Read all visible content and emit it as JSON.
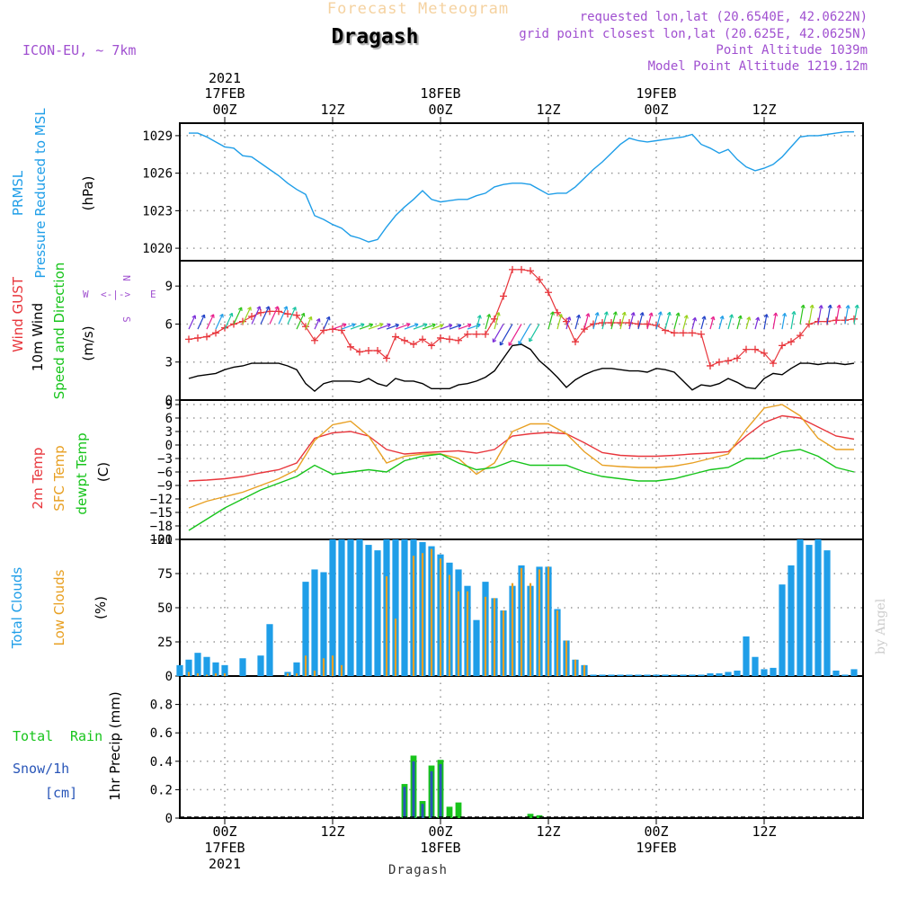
{
  "header": {
    "forecast_title": "Forecast Meteogram",
    "location": "Dragash",
    "model": "ICON-EU, ~ 7km",
    "requested": "requested lon,lat (20.6540E, 42.0622N)",
    "grid_point": "grid point closest lon,lat (20.625E, 42.0625N)",
    "point_altitude": "Point Altitude 1039m",
    "model_altitude": "Model Point Altitude 1219.12m",
    "credit": "by Angel",
    "bottom_location": "Dragash"
  },
  "time_axis": {
    "ticks": [
      {
        "hour": 0,
        "label": "00Z",
        "date": "17FEB",
        "year": "2021"
      },
      {
        "hour": 12,
        "label": "12Z",
        "date": "",
        "year": ""
      },
      {
        "hour": 24,
        "label": "00Z",
        "date": "18FEB",
        "year": ""
      },
      {
        "hour": 36,
        "label": "12Z",
        "date": "",
        "year": ""
      },
      {
        "hour": 48,
        "label": "00Z",
        "date": "19FEB",
        "year": ""
      },
      {
        "hour": 60,
        "label": "12Z",
        "date": "",
        "year": ""
      }
    ],
    "range_hours": [
      -5,
      71
    ]
  },
  "chart_data": [
    {
      "type": "line",
      "panel": "pressure",
      "labels": [
        "PRMSL",
        "Pressure Reduced to MSL",
        "(hPa)"
      ],
      "ylim": [
        1019,
        1030
      ],
      "yticks": [
        1020,
        1023,
        1026,
        1029
      ],
      "grid": true,
      "colors": {
        "line": "#1f9ee8"
      },
      "series": [
        {
          "x": [
            -4,
            -3,
            -2,
            -1,
            0,
            1,
            2,
            3,
            4,
            5,
            6,
            7,
            8,
            9,
            10,
            11,
            12,
            13,
            14,
            15,
            16,
            17,
            18,
            19,
            20,
            21,
            22,
            23,
            24,
            25,
            26,
            27,
            28,
            29,
            30,
            31,
            32,
            33,
            34,
            35,
            36,
            37,
            38,
            39,
            40,
            41,
            42,
            43,
            44,
            45,
            46,
            47,
            48,
            49,
            50,
            51,
            52,
            53,
            54,
            55,
            56,
            57,
            58,
            59,
            60,
            61,
            62,
            63,
            64,
            65,
            66,
            67,
            68,
            69,
            70
          ],
          "y": [
            1029.2,
            1029.2,
            1028.9,
            1028.5,
            1028.1,
            1028.0,
            1027.4,
            1027.3,
            1026.8,
            1026.3,
            1025.8,
            1025.2,
            1024.7,
            1024.3,
            1022.6,
            1022.3,
            1021.9,
            1021.6,
            1021.0,
            1020.8,
            1020.5,
            1020.7,
            1021.7,
            1022.6,
            1023.3,
            1023.9,
            1024.6,
            1023.9,
            1023.7,
            1023.8,
            1023.9,
            1023.9,
            1024.2,
            1024.4,
            1024.9,
            1025.1,
            1025.2,
            1025.2,
            1025.1,
            1024.7,
            1024.3,
            1024.4,
            1024.4,
            1024.9,
            1025.6,
            1026.3,
            1026.9,
            1027.6,
            1028.3,
            1028.8,
            1028.6,
            1028.5,
            1028.6,
            1028.7,
            1028.8,
            1028.9,
            1029.1,
            1028.3,
            1028.0,
            1027.6,
            1027.9,
            1027.1,
            1026.5,
            1026.2,
            1026.4,
            1026.7,
            1027.3,
            1028.1,
            1028.9,
            1029.0,
            1029.0,
            1029.1,
            1029.2,
            1029.3,
            1029.3
          ]
        }
      ]
    },
    {
      "type": "line",
      "panel": "wind",
      "labels": [
        "Wind GUST",
        "10m Wind",
        "Speed and Direction",
        "(m/s)"
      ],
      "compass": {
        "west": "W",
        "east": "E",
        "north": "N",
        "south": "S"
      },
      "ylim": [
        0,
        11
      ],
      "yticks": [
        0,
        3,
        6,
        9
      ],
      "grid": true,
      "colors": {
        "gust": "#e8363c",
        "wind": "#000000"
      },
      "series": [
        {
          "name": "Wind GUST",
          "x": [
            -4,
            -3,
            -2,
            -1,
            0,
            1,
            2,
            3,
            4,
            5,
            6,
            7,
            8,
            9,
            10,
            11,
            12,
            13,
            14,
            15,
            16,
            17,
            18,
            19,
            20,
            21,
            22,
            23,
            24,
            25,
            26,
            27,
            28,
            29,
            30,
            31,
            32,
            33,
            34,
            35,
            36,
            37,
            38,
            39,
            40,
            41,
            42,
            43,
            44,
            45,
            46,
            47,
            48,
            49,
            50,
            51,
            52,
            53,
            54,
            55,
            56,
            57,
            58,
            59,
            60,
            61,
            62,
            63,
            64,
            65,
            66,
            67,
            68,
            69,
            70
          ],
          "y": [
            4.8,
            4.9,
            5.0,
            5.3,
            5.7,
            6.0,
            6.2,
            6.6,
            6.9,
            7.0,
            7.0,
            6.8,
            6.7,
            5.8,
            4.7,
            5.5,
            5.6,
            5.5,
            4.2,
            3.8,
            3.9,
            3.9,
            3.3,
            5.0,
            4.7,
            4.4,
            4.8,
            4.3,
            4.9,
            4.8,
            4.7,
            5.2,
            5.2,
            5.2,
            6.4,
            8.2,
            10.3,
            10.3,
            10.2,
            9.5,
            8.5,
            6.9,
            6.2,
            4.6,
            5.6,
            6.0,
            6.1,
            6.1,
            6.1,
            6.1,
            6.0,
            6.0,
            5.9,
            5.5,
            5.3,
            5.3,
            5.3,
            5.2,
            2.7,
            3.0,
            3.1,
            3.3,
            4.0,
            4.0,
            3.7,
            2.9,
            4.3,
            4.6,
            5.1,
            6.0,
            6.2,
            6.2,
            6.3,
            6.3,
            6.4
          ]
        },
        {
          "name": "10m Wind",
          "x": [
            -4,
            -3,
            -2,
            -1,
            0,
            1,
            2,
            3,
            4,
            5,
            6,
            7,
            8,
            9,
            10,
            11,
            12,
            13,
            14,
            15,
            16,
            17,
            18,
            19,
            20,
            21,
            22,
            23,
            24,
            25,
            26,
            27,
            28,
            29,
            30,
            31,
            32,
            33,
            34,
            35,
            36,
            37,
            38,
            39,
            40,
            41,
            42,
            43,
            44,
            45,
            46,
            47,
            48,
            49,
            50,
            51,
            52,
            53,
            54,
            55,
            56,
            57,
            58,
            59,
            60,
            61,
            62,
            63,
            64,
            65,
            66,
            67,
            68,
            69,
            70
          ],
          "y": [
            1.7,
            1.9,
            2.0,
            2.1,
            2.4,
            2.6,
            2.7,
            2.9,
            2.9,
            2.9,
            2.9,
            2.7,
            2.4,
            1.3,
            0.7,
            1.3,
            1.5,
            1.5,
            1.5,
            1.4,
            1.7,
            1.3,
            1.1,
            1.7,
            1.5,
            1.5,
            1.3,
            0.9,
            0.9,
            0.9,
            1.2,
            1.3,
            1.5,
            1.8,
            2.3,
            3.3,
            4.3,
            4.4,
            4.0,
            3.1,
            2.5,
            1.8,
            1.0,
            1.6,
            2.0,
            2.3,
            2.5,
            2.5,
            2.4,
            2.3,
            2.3,
            2.2,
            2.5,
            2.4,
            2.2,
            1.5,
            0.8,
            1.2,
            1.1,
            1.3,
            1.7,
            1.4,
            1.0,
            0.9,
            1.7,
            2.1,
            2.0,
            2.5,
            2.9,
            2.9,
            2.8,
            2.9,
            2.9,
            2.8,
            2.9
          ]
        }
      ]
    },
    {
      "type": "line",
      "panel": "temperature",
      "labels": [
        "2m Temp",
        "SFC Temp",
        "dewpt Temp",
        "(C)"
      ],
      "ylim": [
        -21,
        10
      ],
      "yticks": [
        9,
        6,
        3,
        0,
        -3,
        -6,
        -9,
        -12,
        -15,
        -18,
        -21
      ],
      "grid": true,
      "colors": {
        "t2m": "#e8363c",
        "sfc": "#e8a023",
        "dewpt": "#17c41b"
      },
      "series": [
        {
          "name": "2m Temp",
          "x": [
            -4,
            -2,
            0,
            2,
            4,
            6,
            8,
            10,
            12,
            14,
            16,
            18,
            20,
            22,
            24,
            26,
            28,
            30,
            32,
            34,
            36,
            38,
            40,
            42,
            44,
            46,
            48,
            50,
            52,
            54,
            56,
            58,
            60,
            62,
            64,
            66,
            68,
            70
          ],
          "y": [
            -8,
            -7.8,
            -7.5,
            -7,
            -6.2,
            -5.5,
            -4,
            1.5,
            2.7,
            3.0,
            2.0,
            -1,
            -2,
            -1.7,
            -1.5,
            -1.3,
            -1.8,
            -1,
            2,
            2.5,
            2.8,
            2.5,
            0.5,
            -1.7,
            -2.3,
            -2.5,
            -2.5,
            -2.3,
            -2,
            -1.8,
            -1.5,
            2,
            5,
            6.5,
            6,
            4,
            2,
            1.3
          ]
        },
        {
          "name": "SFC Temp",
          "x": [
            -4,
            -2,
            0,
            2,
            4,
            6,
            8,
            10,
            12,
            14,
            16,
            18,
            20,
            22,
            24,
            26,
            28,
            30,
            32,
            34,
            36,
            38,
            40,
            42,
            44,
            46,
            48,
            50,
            52,
            54,
            56,
            58,
            60,
            62,
            64,
            66,
            68,
            70
          ],
          "y": [
            -14,
            -12.5,
            -11.5,
            -10.5,
            -9,
            -7.5,
            -5.5,
            1,
            4.5,
            5.3,
            2,
            -4,
            -2.5,
            -2,
            -2,
            -3,
            -6.5,
            -4,
            3,
            4.7,
            4.7,
            2.5,
            -1.5,
            -4.5,
            -4.8,
            -5,
            -5,
            -4.7,
            -4,
            -3,
            -2,
            3.5,
            8.2,
            9,
            6.5,
            1.5,
            -1,
            -1
          ]
        },
        {
          "name": "dewpt Temp",
          "x": [
            -4,
            -2,
            0,
            2,
            4,
            6,
            8,
            10,
            12,
            14,
            16,
            18,
            20,
            22,
            24,
            26,
            28,
            30,
            32,
            34,
            36,
            38,
            40,
            42,
            44,
            46,
            48,
            50,
            52,
            54,
            56,
            58,
            60,
            62,
            64,
            66,
            68,
            70
          ],
          "y": [
            -19,
            -16.5,
            -14,
            -12,
            -10,
            -8.5,
            -7,
            -4.5,
            -6.5,
            -6,
            -5.5,
            -6,
            -3.5,
            -2.5,
            -2,
            -4,
            -5.5,
            -5,
            -3.5,
            -4.5,
            -4.5,
            -4.5,
            -6,
            -7,
            -7.5,
            -8,
            -8,
            -7.5,
            -6.5,
            -5.5,
            -5,
            -3,
            -3,
            -1.5,
            -1,
            -2.5,
            -5,
            -6
          ]
        }
      ]
    },
    {
      "type": "bar",
      "panel": "clouds",
      "labels": [
        "Total Clouds",
        "Low Clouds",
        "(%)"
      ],
      "ylim": [
        0,
        100
      ],
      "yticks": [
        0,
        25,
        50,
        75,
        100
      ],
      "grid": true,
      "colors": {
        "total": "#1f9ee8",
        "low": "#e8a023"
      },
      "x": [
        -5,
        -4,
        -3,
        -2,
        -1,
        0,
        1,
        2,
        3,
        4,
        5,
        6,
        7,
        8,
        9,
        10,
        11,
        12,
        13,
        14,
        15,
        16,
        17,
        18,
        19,
        20,
        21,
        22,
        23,
        24,
        25,
        26,
        27,
        28,
        29,
        30,
        31,
        32,
        33,
        34,
        35,
        36,
        37,
        38,
        39,
        40,
        41,
        42,
        43,
        44,
        45,
        46,
        47,
        48,
        49,
        50,
        51,
        52,
        53,
        54,
        55,
        56,
        57,
        58,
        59,
        60,
        61,
        62,
        63,
        64,
        65,
        66,
        67,
        68,
        69,
        70,
        71
      ],
      "series": [
        {
          "name": "Total Clouds",
          "values": [
            8,
            12,
            17,
            14,
            10,
            8,
            0,
            13,
            0,
            15,
            38,
            0,
            3,
            10,
            69,
            78,
            76,
            100,
            100,
            100,
            100,
            96,
            92,
            100,
            100,
            100,
            100,
            98,
            95,
            89,
            83,
            78,
            66,
            41,
            69,
            57,
            48,
            66,
            81,
            66,
            80,
            80,
            49,
            26,
            12,
            8,
            1,
            1,
            1,
            1,
            1,
            1,
            1,
            1,
            1,
            1,
            1,
            1,
            1,
            2,
            2,
            3,
            4,
            29,
            14,
            5,
            6,
            67,
            81,
            100,
            96,
            100,
            92,
            4,
            1,
            5,
            0
          ]
        },
        {
          "name": "Low Clouds",
          "values": [
            0,
            3,
            2,
            1,
            2,
            2,
            0,
            0,
            0,
            0,
            0,
            0,
            2,
            2,
            15,
            4,
            13,
            15,
            8,
            0,
            0,
            0,
            0,
            73,
            42,
            0,
            88,
            90,
            93,
            86,
            74,
            62,
            62,
            0,
            58,
            57,
            48,
            68,
            79,
            68,
            78,
            80,
            48,
            26,
            12,
            8,
            0,
            0,
            0,
            0,
            0,
            0,
            0,
            0,
            0,
            0,
            0,
            0,
            0,
            0,
            0,
            0,
            0,
            0,
            0,
            0,
            0,
            0,
            0,
            0,
            0,
            0,
            0,
            0,
            0,
            0,
            0
          ]
        }
      ]
    },
    {
      "type": "bar",
      "panel": "precipitation",
      "labels": [
        "Total",
        "Rain",
        "Snow/1h",
        "[cm]",
        "1hr Precip (mm)"
      ],
      "ylim": [
        0,
        1
      ],
      "yticks": [
        0,
        0.2,
        0.4,
        0.6,
        0.8
      ],
      "grid": true,
      "colors": {
        "rain": "#17c41b",
        "snow": "#2855b8"
      },
      "x": [
        20,
        21,
        22,
        23,
        24,
        25,
        26,
        34,
        35
      ],
      "series": [
        {
          "name": "Total Rain",
          "values": [
            0.24,
            0.44,
            0.12,
            0.37,
            0.41,
            0.08,
            0.11,
            0.03,
            0.02
          ]
        },
        {
          "name": "Snow/1h",
          "values": [
            0.22,
            0.4,
            0.1,
            0.33,
            0.38,
            0,
            0,
            0,
            0
          ]
        }
      ]
    }
  ]
}
